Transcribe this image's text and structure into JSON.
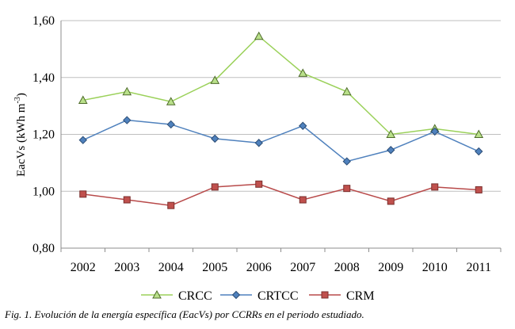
{
  "caption": "Fig. 1. Evolución de la energía específica (EacVs) por CCRRs en el periodo estudiado.",
  "chart_data": {
    "type": "line",
    "title": "",
    "xlabel": "",
    "ylabel_main": "EacVs (kWh m",
    "ylabel_sup": "-3",
    "ylabel_close": ")",
    "ylim": [
      0.8,
      1.6
    ],
    "yticks": [
      0.8,
      1.0,
      1.2,
      1.4,
      1.6
    ],
    "ytick_labels": [
      "0,80",
      "1,00",
      "1,20",
      "1,40",
      "1,60"
    ],
    "grid": "horizontal",
    "legend_position": "bottom",
    "categories": [
      "2002",
      "2003",
      "2004",
      "2005",
      "2006",
      "2007",
      "2008",
      "2009",
      "2010",
      "2011"
    ],
    "series": [
      {
        "name": "CRCC",
        "marker": "triangle",
        "line_color": "#9BD15A",
        "marker_fill": "#B9E08A",
        "marker_stroke": "#4E6B2A",
        "values": [
          1.32,
          1.35,
          1.315,
          1.39,
          1.545,
          1.415,
          1.35,
          1.2,
          1.22,
          1.2
        ]
      },
      {
        "name": "CRTCC",
        "marker": "diamond",
        "line_color": "#4F81BD",
        "marker_fill": "#4F81BD",
        "marker_stroke": "#2C4D75",
        "values": [
          1.18,
          1.25,
          1.235,
          1.185,
          1.17,
          1.23,
          1.105,
          1.145,
          1.21,
          1.14
        ]
      },
      {
        "name": "CRM",
        "marker": "square",
        "line_color": "#B84A4A",
        "marker_fill": "#C0504D",
        "marker_stroke": "#7A2F2D",
        "values": [
          0.99,
          0.97,
          0.95,
          1.015,
          1.025,
          0.97,
          1.01,
          0.965,
          1.015,
          1.005
        ]
      }
    ]
  }
}
